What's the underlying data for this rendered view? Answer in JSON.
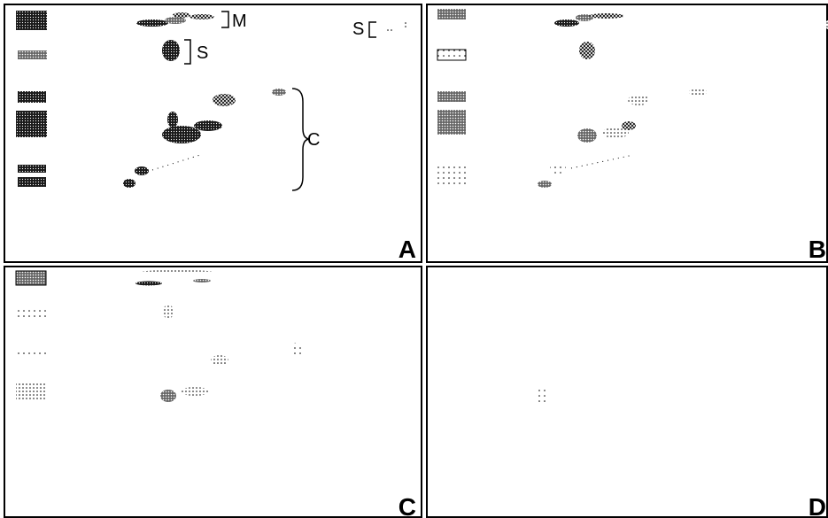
{
  "panels": [
    {
      "label": "A",
      "annotations": [
        "M",
        "S",
        "S",
        "C"
      ]
    },
    {
      "label": "B"
    },
    {
      "label": "C"
    },
    {
      "label": "D"
    }
  ]
}
